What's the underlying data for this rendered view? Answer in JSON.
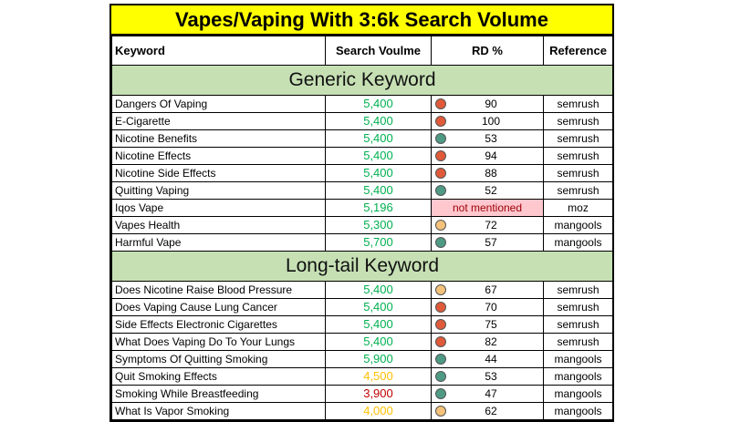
{
  "title": "Vapes/Vaping With 3:6k Search Volume",
  "headers": {
    "keyword": "Keyword",
    "volume": "Search Voulme",
    "rd": "RD %",
    "reference": "Reference"
  },
  "colors": {
    "title_bg": "#ffff00",
    "section_bg": "#c6e0b4",
    "green_volume": "#00b050",
    "orange_volume": "#ffc000",
    "dark_red_volume": "#c00000",
    "dot_red": "#e05a3a",
    "dot_green": "#4e9a84",
    "dot_yellow": "#f4c27a",
    "not_mentioned_bg": "#ffc7ce",
    "not_mentioned_text": "#9c0006"
  },
  "sections": [
    {
      "title": "Generic Keyword",
      "rows": [
        {
          "keyword": "Dangers Of Vaping",
          "volume": "5,400",
          "volume_color": "#00b050",
          "rd": "90",
          "rd_dot": "#e05a3a",
          "reference": "semrush"
        },
        {
          "keyword": "E-Cigarette",
          "volume": "5,400",
          "volume_color": "#00b050",
          "rd": "100",
          "rd_dot": "#e05a3a",
          "reference": "semrush"
        },
        {
          "keyword": "Nicotine Benefits",
          "volume": "5,400",
          "volume_color": "#00b050",
          "rd": "53",
          "rd_dot": "#4e9a84",
          "reference": "semrush"
        },
        {
          "keyword": "Nicotine Effects",
          "volume": "5,400",
          "volume_color": "#00b050",
          "rd": "94",
          "rd_dot": "#e05a3a",
          "reference": "semrush"
        },
        {
          "keyword": "Nicotine Side Effects",
          "volume": "5,400",
          "volume_color": "#00b050",
          "rd": "88",
          "rd_dot": "#e05a3a",
          "reference": "semrush"
        },
        {
          "keyword": "Quitting Vaping",
          "volume": "5,400",
          "volume_color": "#00b050",
          "rd": "52",
          "rd_dot": "#4e9a84",
          "reference": "semrush"
        },
        {
          "keyword": "Iqos Vape",
          "volume": "5,196",
          "volume_color": "#00b050",
          "rd": "not mentioned",
          "rd_dot": "",
          "reference": "moz"
        },
        {
          "keyword": "Vapes Health",
          "volume": "5,300",
          "volume_color": "#00b050",
          "rd": "72",
          "rd_dot": "#f4c27a",
          "reference": "mangools"
        },
        {
          "keyword": "Harmful Vape",
          "volume": "5,700",
          "volume_color": "#00b050",
          "rd": "57",
          "rd_dot": "#4e9a84",
          "reference": "mangools"
        }
      ]
    },
    {
      "title": "Long-tail Keyword",
      "rows": [
        {
          "keyword": "Does Nicotine Raise Blood Pressure",
          "volume": "5,400",
          "volume_color": "#00b050",
          "rd": "67",
          "rd_dot": "#f4c27a",
          "reference": "semrush"
        },
        {
          "keyword": "Does Vaping Cause Lung Cancer",
          "volume": "5,400",
          "volume_color": "#00b050",
          "rd": "70",
          "rd_dot": "#e05a3a",
          "reference": "semrush"
        },
        {
          "keyword": "Side Effects Electronic Cigarettes",
          "volume": "5,400",
          "volume_color": "#00b050",
          "rd": "75",
          "rd_dot": "#e05a3a",
          "reference": "semrush"
        },
        {
          "keyword": "What Does Vaping Do To Your Lungs",
          "volume": "5,400",
          "volume_color": "#00b050",
          "rd": "82",
          "rd_dot": "#e05a3a",
          "reference": "semrush"
        },
        {
          "keyword": "Symptoms Of Quitting Smoking",
          "volume": "5,900",
          "volume_color": "#00b050",
          "rd": "44",
          "rd_dot": "#4e9a84",
          "reference": "mangools"
        },
        {
          "keyword": "Quit Smoking Effects",
          "volume": "4,500",
          "volume_color": "#ffc000",
          "rd": "53",
          "rd_dot": "#4e9a84",
          "reference": "mangools"
        },
        {
          "keyword": "Smoking While Breastfeeding",
          "volume": "3,900",
          "volume_color": "#c00000",
          "rd": "47",
          "rd_dot": "#4e9a84",
          "reference": "mangools"
        },
        {
          "keyword": "What Is Vapor Smoking",
          "volume": "4,000",
          "volume_color": "#ffc000",
          "rd": "62",
          "rd_dot": "#f4c27a",
          "reference": "mangools"
        }
      ]
    }
  ]
}
